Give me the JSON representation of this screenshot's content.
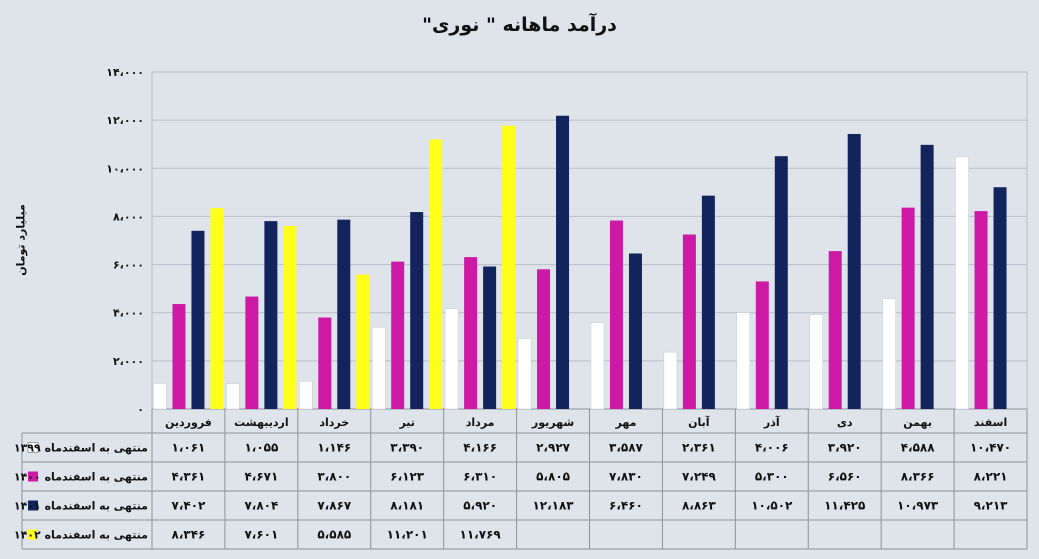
{
  "chart_data": {
    "type": "bar",
    "title": "درآمد ماهانه \" نوری\"",
    "xlabel": "",
    "ylabel": "میلیارد تومان",
    "ylim": [
      0,
      14000
    ],
    "yticks": [
      0,
      2000,
      4000,
      6000,
      8000,
      10000,
      12000,
      14000
    ],
    "ytick_labels": [
      "۰",
      "۲،۰۰۰",
      "۴،۰۰۰",
      "۶،۰۰۰",
      "۸،۰۰۰",
      "۱۰،۰۰۰",
      "۱۲،۰۰۰",
      "۱۴،۰۰۰"
    ],
    "grid": true,
    "legend": "data-table-left",
    "categories": [
      "فروردین",
      "اردیبهشت",
      "خرداد",
      "تیر",
      "مرداد",
      "شهریور",
      "مهر",
      "آبان",
      "آذر",
      "دی",
      "بهمن",
      "اسفند"
    ],
    "series": [
      {
        "name": "منتهی به اسفندماه ۱۳۹۹",
        "color": "#ffffff",
        "values": [
          1061,
          1055,
          1146,
          3390,
          4166,
          2927,
          3587,
          2361,
          4006,
          3920,
          4588,
          10470
        ],
        "labels": [
          "۱،۰۶۱",
          "۱،۰۵۵",
          "۱،۱۴۶",
          "۳،۳۹۰",
          "۴،۱۶۶",
          "۲،۹۲۷",
          "۳،۵۸۷",
          "۲،۳۶۱",
          "۴،۰۰۶",
          "۳،۹۲۰",
          "۴،۵۸۸",
          "۱۰،۴۷۰"
        ]
      },
      {
        "name": "منتهی به اسفندماه ۱۴۰۰",
        "color": "#cc1aa4",
        "values": [
          4361,
          4671,
          3800,
          6123,
          6310,
          5805,
          7830,
          7249,
          5300,
          6560,
          8366,
          8221
        ],
        "labels": [
          "۴،۳۶۱",
          "۴،۶۷۱",
          "۳،۸۰۰",
          "۶،۱۲۳",
          "۶،۳۱۰",
          "۵،۸۰۵",
          "۷،۸۳۰",
          "۷،۲۴۹",
          "۵،۳۰۰",
          "۶،۵۶۰",
          "۸،۳۶۶",
          "۸،۲۲۱"
        ]
      },
      {
        "name": "منتهی به اسفندماه ۱۴۰۱",
        "color": "#13235c",
        "values": [
          7402,
          7804,
          7867,
          8181,
          5920,
          12183,
          6460,
          8863,
          10502,
          11425,
          10973,
          9213
        ],
        "labels": [
          "۷،۴۰۲",
          "۷،۸۰۴",
          "۷،۸۶۷",
          "۸،۱۸۱",
          "۵،۹۲۰",
          "۱۲،۱۸۳",
          "۶،۴۶۰",
          "۸،۸۶۳",
          "۱۰،۵۰۲",
          "۱۱،۴۲۵",
          "۱۰،۹۷۳",
          "۹،۲۱۳"
        ]
      },
      {
        "name": "منتهی به اسفندماه ۱۴۰۲",
        "color": "#ffff1a",
        "values": [
          8346,
          7601,
          5585,
          11201,
          11769,
          null,
          null,
          null,
          null,
          null,
          null,
          null
        ],
        "labels": [
          "۸،۳۴۶",
          "۷،۶۰۱",
          "۵،۵۸۵",
          "۱۱،۲۰۱",
          "۱۱،۷۶۹",
          "",
          "",
          "",
          "",
          "",
          "",
          ""
        ]
      }
    ]
  }
}
